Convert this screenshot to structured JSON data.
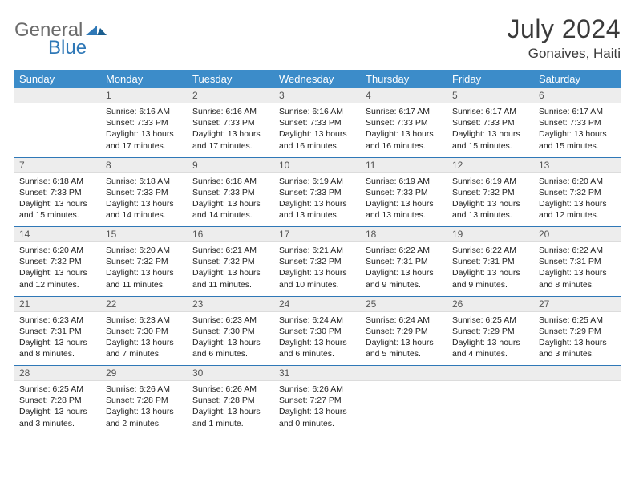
{
  "logo": {
    "text1": "General",
    "text2": "Blue"
  },
  "title": "July 2024",
  "location": "Gonaives, Haiti",
  "colors": {
    "header_bg": "#3c8cc9",
    "header_text": "#ffffff",
    "daynum_bg": "#ededed",
    "rule": "#2f78b7",
    "logo_gray": "#6b6b6b",
    "logo_blue": "#2f78b7"
  },
  "day_headers": [
    "Sunday",
    "Monday",
    "Tuesday",
    "Wednesday",
    "Thursday",
    "Friday",
    "Saturday"
  ],
  "weeks": [
    [
      {
        "n": "",
        "sr": "",
        "ss": "",
        "dl": ""
      },
      {
        "n": "1",
        "sr": "Sunrise: 6:16 AM",
        "ss": "Sunset: 7:33 PM",
        "dl": "Daylight: 13 hours and 17 minutes."
      },
      {
        "n": "2",
        "sr": "Sunrise: 6:16 AM",
        "ss": "Sunset: 7:33 PM",
        "dl": "Daylight: 13 hours and 17 minutes."
      },
      {
        "n": "3",
        "sr": "Sunrise: 6:16 AM",
        "ss": "Sunset: 7:33 PM",
        "dl": "Daylight: 13 hours and 16 minutes."
      },
      {
        "n": "4",
        "sr": "Sunrise: 6:17 AM",
        "ss": "Sunset: 7:33 PM",
        "dl": "Daylight: 13 hours and 16 minutes."
      },
      {
        "n": "5",
        "sr": "Sunrise: 6:17 AM",
        "ss": "Sunset: 7:33 PM",
        "dl": "Daylight: 13 hours and 15 minutes."
      },
      {
        "n": "6",
        "sr": "Sunrise: 6:17 AM",
        "ss": "Sunset: 7:33 PM",
        "dl": "Daylight: 13 hours and 15 minutes."
      }
    ],
    [
      {
        "n": "7",
        "sr": "Sunrise: 6:18 AM",
        "ss": "Sunset: 7:33 PM",
        "dl": "Daylight: 13 hours and 15 minutes."
      },
      {
        "n": "8",
        "sr": "Sunrise: 6:18 AM",
        "ss": "Sunset: 7:33 PM",
        "dl": "Daylight: 13 hours and 14 minutes."
      },
      {
        "n": "9",
        "sr": "Sunrise: 6:18 AM",
        "ss": "Sunset: 7:33 PM",
        "dl": "Daylight: 13 hours and 14 minutes."
      },
      {
        "n": "10",
        "sr": "Sunrise: 6:19 AM",
        "ss": "Sunset: 7:33 PM",
        "dl": "Daylight: 13 hours and 13 minutes."
      },
      {
        "n": "11",
        "sr": "Sunrise: 6:19 AM",
        "ss": "Sunset: 7:33 PM",
        "dl": "Daylight: 13 hours and 13 minutes."
      },
      {
        "n": "12",
        "sr": "Sunrise: 6:19 AM",
        "ss": "Sunset: 7:32 PM",
        "dl": "Daylight: 13 hours and 13 minutes."
      },
      {
        "n": "13",
        "sr": "Sunrise: 6:20 AM",
        "ss": "Sunset: 7:32 PM",
        "dl": "Daylight: 13 hours and 12 minutes."
      }
    ],
    [
      {
        "n": "14",
        "sr": "Sunrise: 6:20 AM",
        "ss": "Sunset: 7:32 PM",
        "dl": "Daylight: 13 hours and 12 minutes."
      },
      {
        "n": "15",
        "sr": "Sunrise: 6:20 AM",
        "ss": "Sunset: 7:32 PM",
        "dl": "Daylight: 13 hours and 11 minutes."
      },
      {
        "n": "16",
        "sr": "Sunrise: 6:21 AM",
        "ss": "Sunset: 7:32 PM",
        "dl": "Daylight: 13 hours and 11 minutes."
      },
      {
        "n": "17",
        "sr": "Sunrise: 6:21 AM",
        "ss": "Sunset: 7:32 PM",
        "dl": "Daylight: 13 hours and 10 minutes."
      },
      {
        "n": "18",
        "sr": "Sunrise: 6:22 AM",
        "ss": "Sunset: 7:31 PM",
        "dl": "Daylight: 13 hours and 9 minutes."
      },
      {
        "n": "19",
        "sr": "Sunrise: 6:22 AM",
        "ss": "Sunset: 7:31 PM",
        "dl": "Daylight: 13 hours and 9 minutes."
      },
      {
        "n": "20",
        "sr": "Sunrise: 6:22 AM",
        "ss": "Sunset: 7:31 PM",
        "dl": "Daylight: 13 hours and 8 minutes."
      }
    ],
    [
      {
        "n": "21",
        "sr": "Sunrise: 6:23 AM",
        "ss": "Sunset: 7:31 PM",
        "dl": "Daylight: 13 hours and 8 minutes."
      },
      {
        "n": "22",
        "sr": "Sunrise: 6:23 AM",
        "ss": "Sunset: 7:30 PM",
        "dl": "Daylight: 13 hours and 7 minutes."
      },
      {
        "n": "23",
        "sr": "Sunrise: 6:23 AM",
        "ss": "Sunset: 7:30 PM",
        "dl": "Daylight: 13 hours and 6 minutes."
      },
      {
        "n": "24",
        "sr": "Sunrise: 6:24 AM",
        "ss": "Sunset: 7:30 PM",
        "dl": "Daylight: 13 hours and 6 minutes."
      },
      {
        "n": "25",
        "sr": "Sunrise: 6:24 AM",
        "ss": "Sunset: 7:29 PM",
        "dl": "Daylight: 13 hours and 5 minutes."
      },
      {
        "n": "26",
        "sr": "Sunrise: 6:25 AM",
        "ss": "Sunset: 7:29 PM",
        "dl": "Daylight: 13 hours and 4 minutes."
      },
      {
        "n": "27",
        "sr": "Sunrise: 6:25 AM",
        "ss": "Sunset: 7:29 PM",
        "dl": "Daylight: 13 hours and 3 minutes."
      }
    ],
    [
      {
        "n": "28",
        "sr": "Sunrise: 6:25 AM",
        "ss": "Sunset: 7:28 PM",
        "dl": "Daylight: 13 hours and 3 minutes."
      },
      {
        "n": "29",
        "sr": "Sunrise: 6:26 AM",
        "ss": "Sunset: 7:28 PM",
        "dl": "Daylight: 13 hours and 2 minutes."
      },
      {
        "n": "30",
        "sr": "Sunrise: 6:26 AM",
        "ss": "Sunset: 7:28 PM",
        "dl": "Daylight: 13 hours and 1 minute."
      },
      {
        "n": "31",
        "sr": "Sunrise: 6:26 AM",
        "ss": "Sunset: 7:27 PM",
        "dl": "Daylight: 13 hours and 0 minutes."
      },
      {
        "n": "",
        "sr": "",
        "ss": "",
        "dl": ""
      },
      {
        "n": "",
        "sr": "",
        "ss": "",
        "dl": ""
      },
      {
        "n": "",
        "sr": "",
        "ss": "",
        "dl": ""
      }
    ]
  ]
}
